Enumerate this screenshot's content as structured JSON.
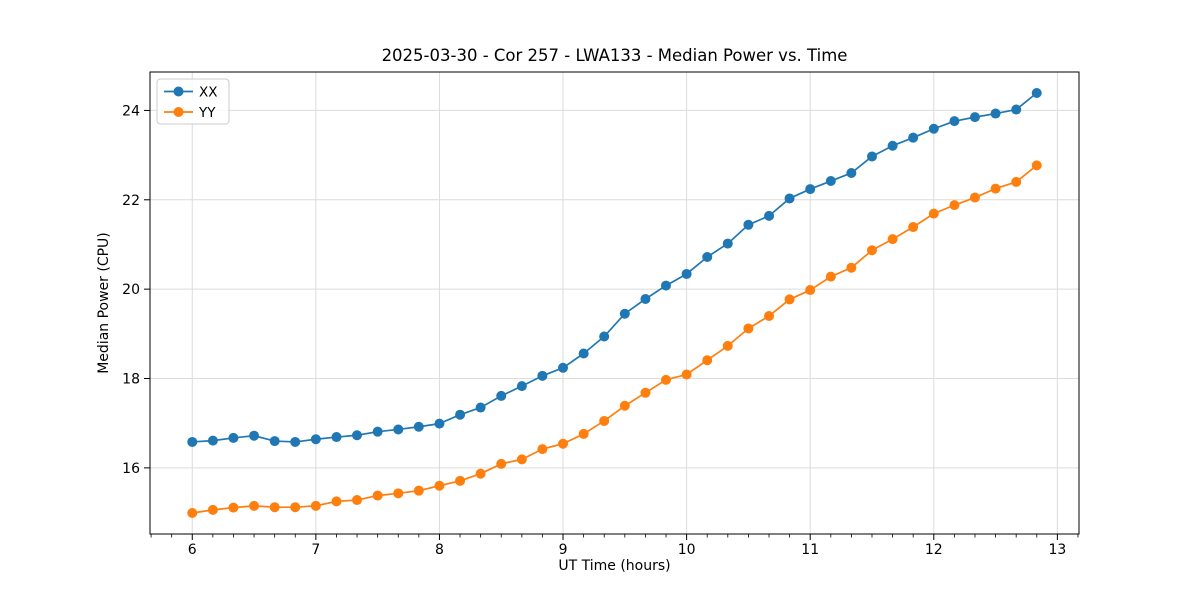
{
  "figure": {
    "title": "2025-03-30 - Cor 257 - LWA133 - Median Power vs. Time"
  },
  "chart_data": {
    "type": "line",
    "title": "2025-03-30 - Cor 257 - LWA133 - Median Power vs. Time",
    "xlabel": "UT Time (hours)",
    "ylabel": "Median Power (CPU)",
    "xlim": [
      5.658,
      13.175
    ],
    "ylim": [
      14.52,
      24.86
    ],
    "x_major_ticks": [
      6,
      7,
      8,
      9,
      10,
      11,
      12,
      13
    ],
    "y_major_ticks": [
      16,
      18,
      20,
      22,
      24
    ],
    "x_minor_step": 0.16667,
    "grid": true,
    "grid_color": "#dcdcdc",
    "legend_position": "upper-left",
    "marker": "circle",
    "x": [
      6.0,
      6.167,
      6.333,
      6.5,
      6.667,
      6.833,
      7.0,
      7.167,
      7.333,
      7.5,
      7.667,
      7.833,
      8.0,
      8.167,
      8.333,
      8.5,
      8.667,
      8.833,
      9.0,
      9.167,
      9.333,
      9.5,
      9.667,
      9.833,
      10.0,
      10.167,
      10.333,
      10.5,
      10.667,
      10.833,
      11.0,
      11.167,
      11.333,
      11.5,
      11.667,
      11.833,
      12.0,
      12.167,
      12.333,
      12.5,
      12.667,
      12.833
    ],
    "series": [
      {
        "name": "XX",
        "color": "#1f77b4",
        "values": [
          16.58,
          16.61,
          16.67,
          16.72,
          16.6,
          16.58,
          16.64,
          16.69,
          16.73,
          16.81,
          16.86,
          16.92,
          16.99,
          17.19,
          17.35,
          17.61,
          17.83,
          18.06,
          18.24,
          18.56,
          18.94,
          19.45,
          19.78,
          20.08,
          20.34,
          20.72,
          21.02,
          21.44,
          21.64,
          22.03,
          22.24,
          22.42,
          22.6,
          22.97,
          23.21,
          23.39,
          23.59,
          23.76,
          23.85,
          23.93,
          24.02,
          24.39
        ]
      },
      {
        "name": "YY",
        "color": "#ff7f0e",
        "values": [
          14.99,
          15.06,
          15.11,
          15.15,
          15.12,
          15.12,
          15.15,
          15.25,
          15.28,
          15.38,
          15.43,
          15.49,
          15.6,
          15.71,
          15.87,
          16.09,
          16.19,
          16.42,
          16.54,
          16.76,
          17.05,
          17.39,
          17.68,
          17.97,
          18.09,
          18.41,
          18.73,
          19.12,
          19.4,
          19.77,
          19.98,
          20.28,
          20.48,
          20.87,
          21.12,
          21.39,
          21.69,
          21.88,
          22.05,
          22.25,
          22.4,
          22.77
        ]
      }
    ]
  }
}
